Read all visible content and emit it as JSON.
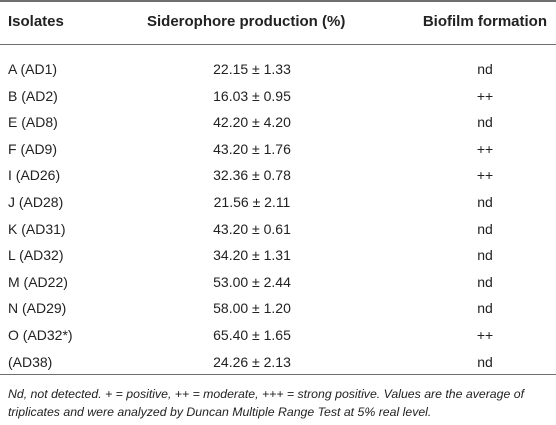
{
  "table": {
    "headers": {
      "isolates": "Isolates",
      "siderophore": "Siderophore production (%)",
      "biofilm": "Biofilm formation"
    },
    "rows": [
      {
        "isolate": "A (AD1)",
        "siderophore": "22.15 ± 1.33",
        "biofilm": "nd"
      },
      {
        "isolate": "B (AD2)",
        "siderophore": "16.03 ± 0.95",
        "biofilm": "++"
      },
      {
        "isolate": "E (AD8)",
        "siderophore": "42.20 ± 4.20",
        "biofilm": "nd"
      },
      {
        "isolate": "F (AD9)",
        "siderophore": "43.20 ± 1.76",
        "biofilm": "++"
      },
      {
        "isolate": "I (AD26)",
        "siderophore": "32.36 ± 0.78",
        "biofilm": "++"
      },
      {
        "isolate": "J (AD28)",
        "siderophore": "21.56 ± 2.11",
        "biofilm": "nd"
      },
      {
        "isolate": "K (AD31)",
        "siderophore": "43.20 ± 0.61",
        "biofilm": "nd"
      },
      {
        "isolate": "L (AD32)",
        "siderophore": "34.20 ± 1.31",
        "biofilm": "nd"
      },
      {
        "isolate": "M (AD22)",
        "siderophore": "53.00 ± 2.44",
        "biofilm": "nd"
      },
      {
        "isolate": "N (AD29)",
        "siderophore": "58.00 ± 1.20",
        "biofilm": "nd"
      },
      {
        "isolate": "O (AD32*)",
        "siderophore": "65.40 ± 1.65",
        "biofilm": "++"
      },
      {
        "isolate": "(AD38)",
        "siderophore": "24.26 ± 2.13",
        "biofilm": "nd"
      }
    ],
    "footnote": "Nd, not detected. + = positive, ++ = moderate, +++ = strong positive. Values are the average of triplicates and were analyzed by Duncan Multiple Range Test at 5% real level."
  }
}
